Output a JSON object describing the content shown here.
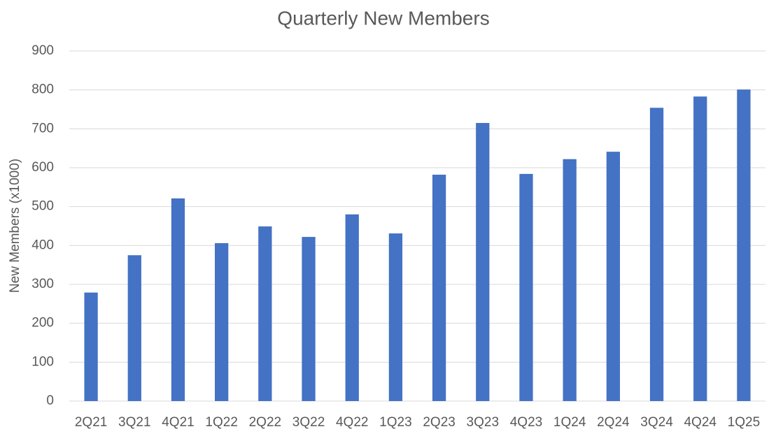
{
  "chart_data": {
    "type": "bar",
    "title": "Quarterly New Members",
    "y_label": "New Members (x1000)",
    "categories": [
      "2Q21",
      "3Q21",
      "4Q21",
      "1Q22",
      "2Q22",
      "3Q22",
      "4Q22",
      "1Q23",
      "2Q23",
      "3Q23",
      "4Q23",
      "1Q24",
      "2Q24",
      "3Q24",
      "4Q24",
      "1Q25"
    ],
    "values": [
      279,
      375,
      521,
      406,
      449,
      422,
      480,
      431,
      582,
      715,
      584,
      622,
      641,
      754,
      783,
      801
    ],
    "color": "#4472c4",
    "ylim": [
      0,
      900
    ],
    "yticks": [
      0,
      100,
      200,
      300,
      400,
      500,
      600,
      700,
      800,
      900
    ],
    "grid": true
  }
}
